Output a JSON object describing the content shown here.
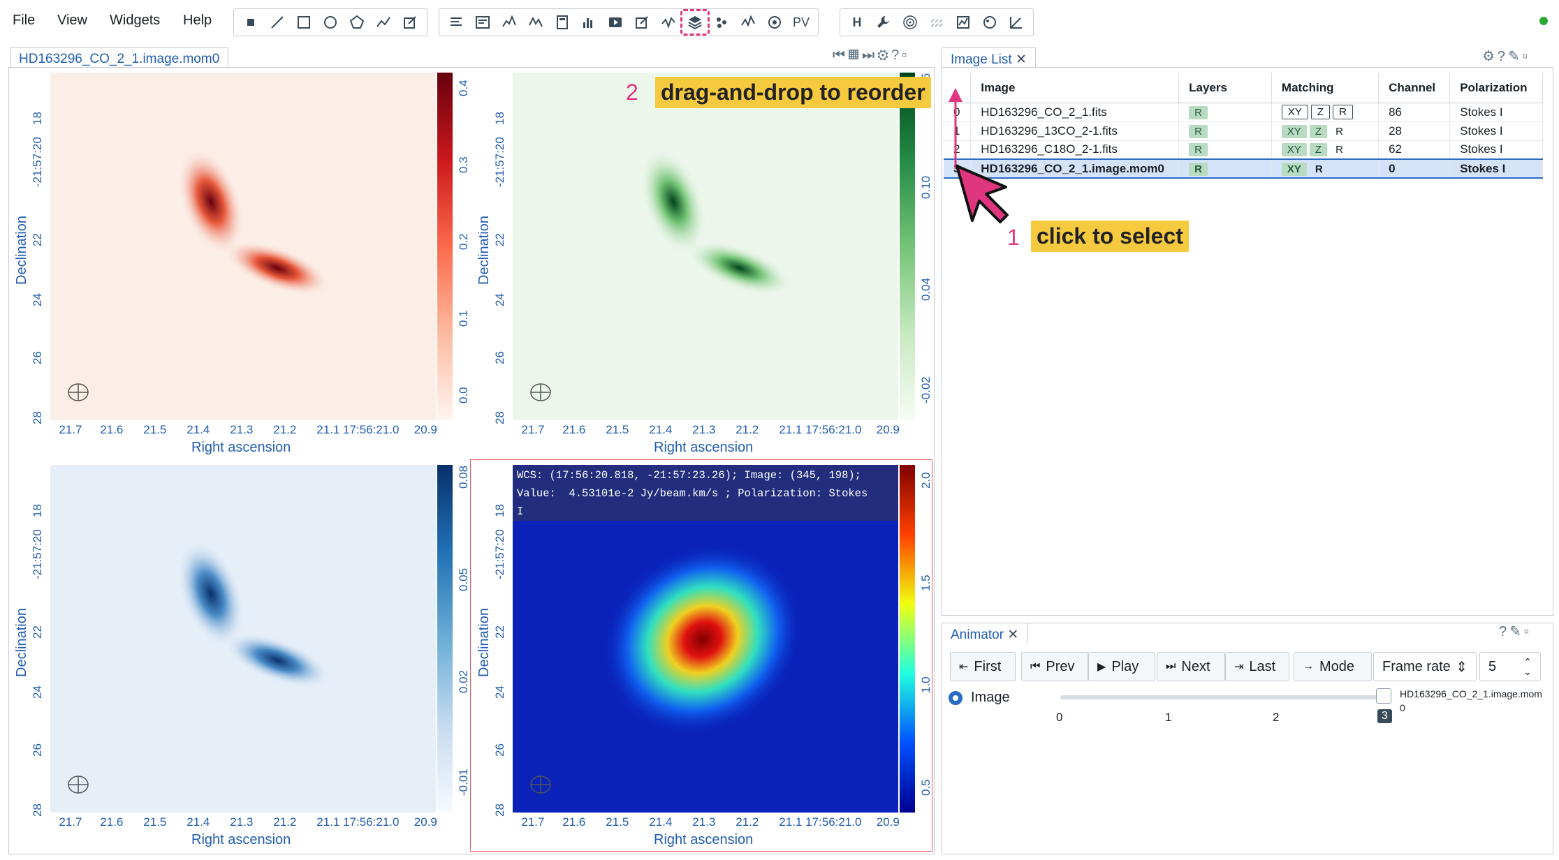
{
  "menu": [
    "File",
    "View",
    "Widgets",
    "Help"
  ],
  "toolbar": {
    "pv_label": "PV",
    "h_label": "H"
  },
  "image_view": {
    "tab": "HD163296_CO_2_1.image.mom0",
    "x_ticks": [
      "21.7",
      "21.6",
      "21.5",
      "21.4",
      "21.3",
      "21.2",
      "21.1 17:56:21.0",
      "20.9"
    ],
    "y_ticks": [
      "18",
      "-21:57:20",
      "22",
      "24",
      "26",
      "28"
    ],
    "xlabel": "Right ascension",
    "ylabel": "Declination",
    "frames": [
      {
        "colormap": "reds",
        "colorbar_ticks": [
          "0.4",
          "0.3",
          "0.2",
          "0.1",
          "0.0"
        ]
      },
      {
        "colormap": "greens",
        "colorbar_ticks": [
          "0.16",
          "0.10",
          "0.04",
          "-0.02"
        ]
      },
      {
        "colormap": "blues",
        "colorbar_ticks": [
          "0.08",
          "0.05",
          "0.02",
          "-0.01"
        ]
      },
      {
        "colormap": "jet",
        "colorbar_ticks": [
          "2.0",
          "1.5",
          "1.0",
          "0.5"
        ]
      }
    ],
    "cursor_info": "WCS: (17:56:20.818, -21:57:23.26); Image: (345, 198);\nValue:  4.53101e-2 Jy/beam.km/s ; Polarization: Stokes\nI"
  },
  "annotations": {
    "step2_num": "2",
    "step2_text": "drag-and-drop to reorder",
    "step1_num": "1",
    "step1_text": "click to select"
  },
  "image_list": {
    "tab": "Image List",
    "headers": [
      "",
      "Image",
      "Layers",
      "Matching",
      "Channel",
      "Polarization"
    ],
    "rows": [
      {
        "idx": "0",
        "image": "HD163296_CO_2_1.fits",
        "layers": "R",
        "match": [
          "XY",
          "Z",
          "R"
        ],
        "channel": "86",
        "pol": "Stokes I"
      },
      {
        "idx": "1",
        "image": "HD163296_13CO_2-1.fits",
        "layers": "R",
        "match": [
          "XY",
          "Z",
          "R"
        ],
        "channel": "28",
        "pol": "Stokes I"
      },
      {
        "idx": "2",
        "image": "HD163296_C18O_2-1.fits",
        "layers": "R",
        "match": [
          "XY",
          "Z",
          "R"
        ],
        "channel": "62",
        "pol": "Stokes I"
      },
      {
        "idx": "3",
        "image": "HD163296_CO_2_1.image.mom0",
        "layers": "R",
        "match": [
          "XY",
          "R"
        ],
        "channel": "0",
        "pol": "Stokes I"
      }
    ]
  },
  "animator": {
    "tab": "Animator",
    "first": "First",
    "prev": "Prev",
    "play": "Play",
    "next": "Next",
    "last": "Last",
    "mode": "Mode",
    "frame_rate": "Frame rate",
    "frame_rate_value": "5",
    "radio_label": "Image",
    "slider_ticks": [
      "0",
      "1",
      "2"
    ],
    "slider_value": "3",
    "current_image": "HD163296_CO_2_1.image.mom",
    "current_image_sub": "0"
  },
  "colors": {
    "accent": "#215db0",
    "highlight": "#e0357f",
    "tip_bg": "#f6ca3f",
    "status": "#29a634"
  }
}
